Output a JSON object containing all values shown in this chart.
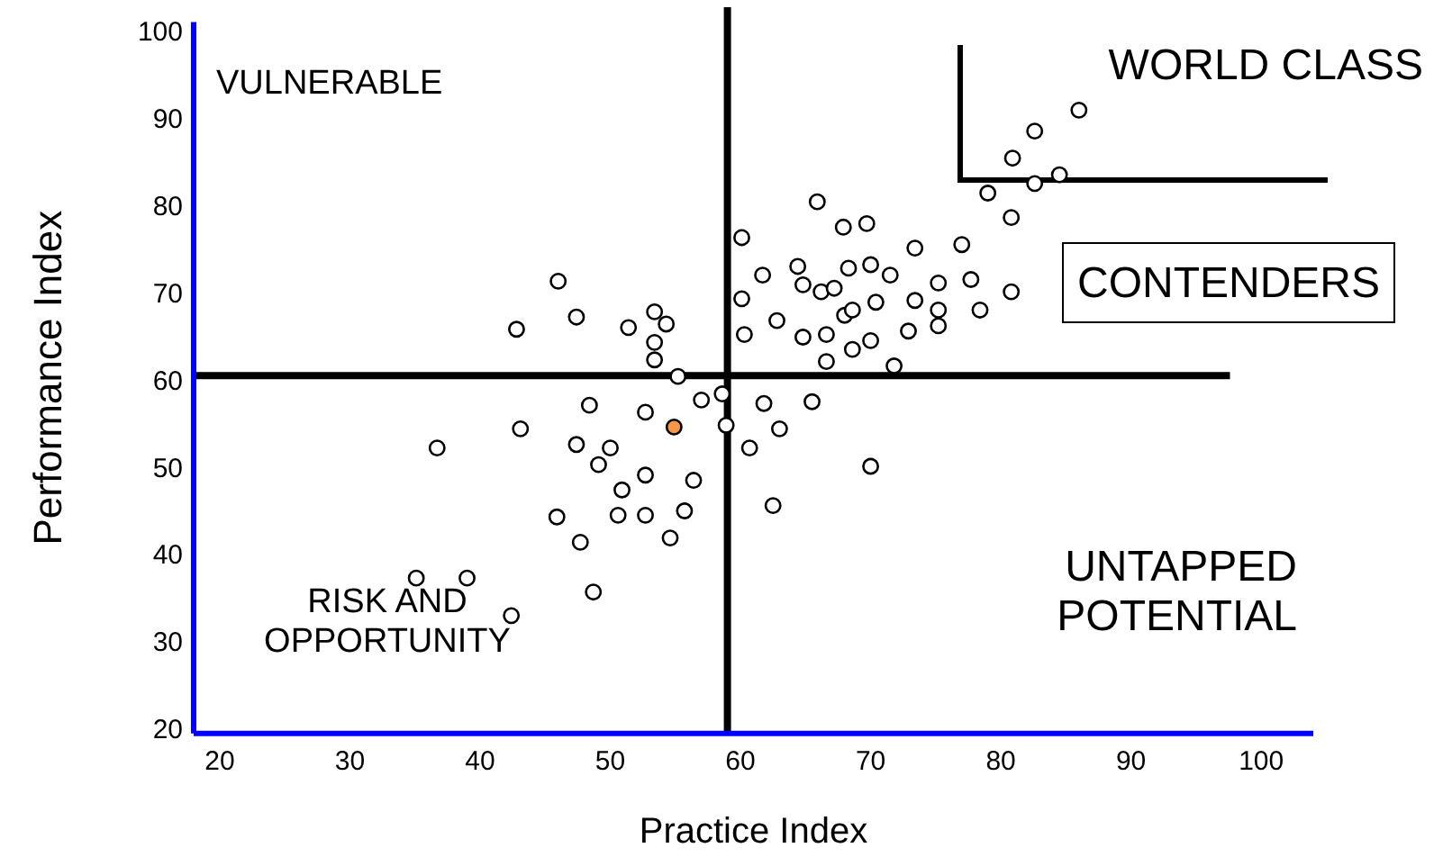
{
  "chart_data": {
    "type": "scatter",
    "xlabel": "Practice Index",
    "ylabel": "Performance Index",
    "xlim": [
      18,
      104
    ],
    "ylim": [
      19.5,
      101
    ],
    "xticks": [
      20,
      30,
      40,
      50,
      60,
      70,
      80,
      90,
      100
    ],
    "yticks": [
      20,
      30,
      40,
      50,
      60,
      70,
      80,
      90,
      100
    ],
    "grid": false,
    "marker": "circle",
    "ref_lines": [
      {
        "axis": "x",
        "value": 59,
        "color": "#000000"
      },
      {
        "axis": "y",
        "value": 60.5,
        "color": "#000000"
      }
    ],
    "annotations": [
      "VULNERABLE",
      "WORLD CLASS",
      "CONTENDERS",
      "RISK AND\nOPPORTUNITY",
      "UNTAPPED\nPOTENTIAL"
    ],
    "series": [
      {
        "color": "#ffffff",
        "x": [
          46.0,
          47.4,
          42.8,
          51.4,
          53.4,
          54.3,
          53.4,
          53.4,
          55.2,
          57.0,
          58.6,
          58.9,
          48.4,
          52.7,
          43.1,
          36.7,
          47.4,
          50.0,
          49.1,
          52.7,
          56.4,
          50.9,
          45.9,
          50.6,
          52.7,
          55.7,
          47.7,
          54.6,
          60.7,
          35.1,
          39.0,
          48.7,
          42.4,
          65.9,
          67.9,
          69.7,
          60.1,
          61.7,
          64.4,
          64.8,
          66.2,
          67.2,
          68.3,
          70.0,
          71.5,
          73.4,
          77.0,
          75.2,
          77.7,
          80.8,
          80.8,
          60.1,
          62.8,
          60.3,
          64.8,
          66.6,
          68.0,
          68.6,
          70.4,
          73.4,
          75.2,
          75.2,
          78.4,
          72.9,
          68.6,
          70.0,
          66.6,
          71.8,
          61.8,
          65.5,
          63.0,
          70.0,
          62.5,
          86.0,
          82.6,
          80.9,
          84.5,
          82.6,
          79.0
        ],
        "values": [
          71.3,
          67.2,
          65.8,
          66.0,
          67.8,
          66.4,
          64.3,
          62.3,
          60.4,
          57.7,
          58.4,
          54.8,
          57.1,
          56.3,
          54.4,
          52.2,
          52.6,
          52.2,
          50.3,
          49.1,
          48.5,
          47.4,
          44.3,
          44.5,
          44.5,
          45.0,
          41.4,
          41.9,
          52.2,
          37.3,
          37.3,
          35.7,
          33.0,
          80.4,
          77.5,
          77.9,
          76.3,
          72.0,
          73.0,
          70.9,
          70.1,
          70.5,
          72.8,
          73.2,
          72.0,
          75.1,
          75.5,
          71.1,
          71.5,
          78.6,
          70.1,
          69.3,
          66.8,
          65.2,
          64.9,
          65.2,
          67.4,
          68.0,
          68.9,
          69.1,
          68.0,
          66.2,
          68.0,
          65.6,
          63.5,
          64.5,
          62.1,
          61.6,
          57.3,
          57.5,
          54.4,
          50.1,
          45.6,
          90.9,
          88.5,
          85.4,
          83.5,
          82.5,
          81.4
        ]
      },
      {
        "color": "#f79646",
        "x": [
          54.9
        ],
        "values": [
          54.6
        ]
      }
    ]
  }
}
